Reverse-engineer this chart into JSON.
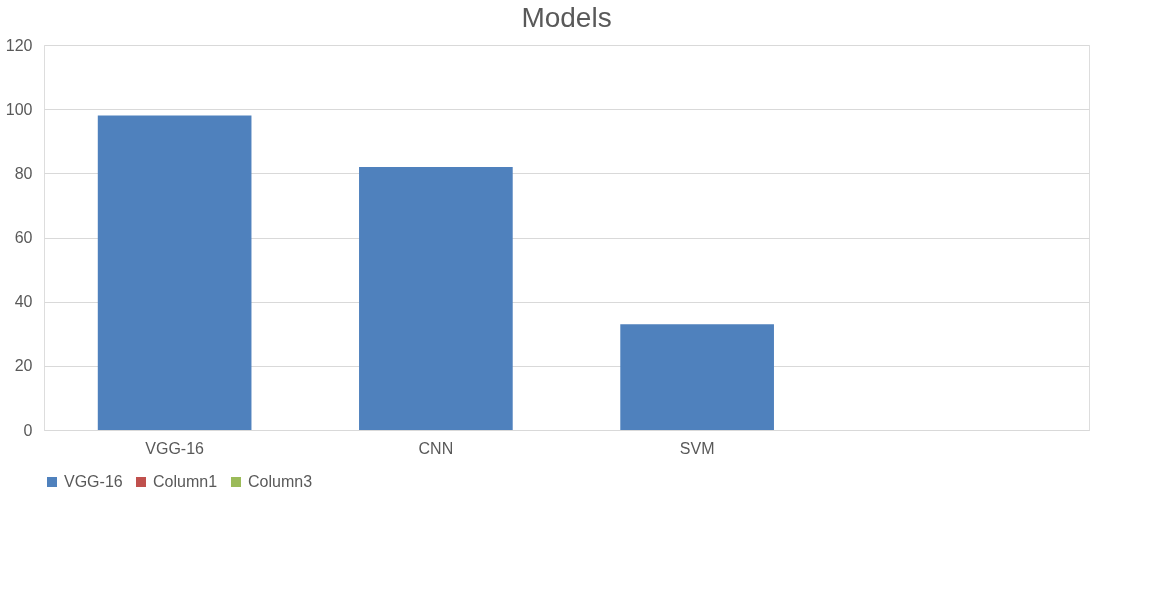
{
  "chart_data": {
    "type": "bar",
    "title": "Models",
    "categories": [
      "VGG-16",
      "CNN",
      "SVM",
      null
    ],
    "series": [
      {
        "name": "VGG-16",
        "color": "#4f81bd",
        "values": [
          98,
          82,
          33,
          null
        ]
      },
      {
        "name": "Column1",
        "color": "#c0504d",
        "values": [
          null,
          null,
          null,
          null
        ]
      },
      {
        "name": "Column3",
        "color": "#9bbb59",
        "values": [
          null,
          null,
          null,
          null
        ]
      }
    ],
    "ylim": [
      0,
      120
    ],
    "yticks": [
      0,
      20,
      40,
      60,
      80,
      100,
      120
    ],
    "grid": "y",
    "legend": "bottom"
  }
}
